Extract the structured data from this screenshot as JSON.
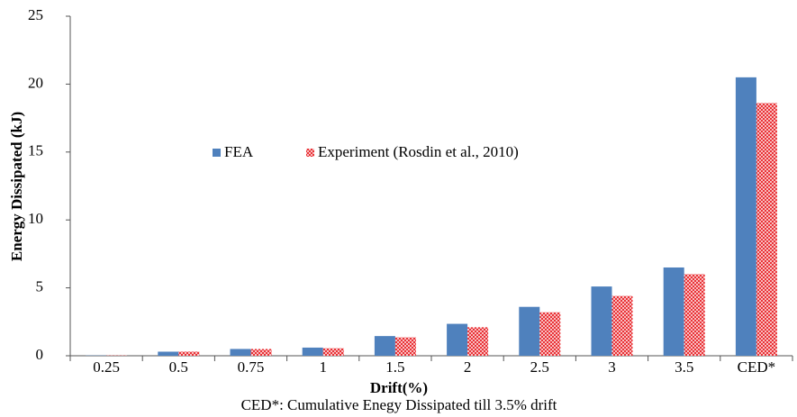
{
  "chart_data": {
    "type": "bar",
    "xlabel": "Drift(%)",
    "ylabel": "Energy Dissipated (kJ)",
    "note": "CED*: Cumulative Enegy Dissipated till 3.5% drift",
    "categories": [
      "0.25",
      "0.5",
      "0.75",
      "1",
      "1.5",
      "2",
      "2.5",
      "3",
      "3.5",
      "CED*"
    ],
    "series": [
      {
        "name": "FEA",
        "color": "#4f81bd",
        "values": [
          0.02,
          0.3,
          0.5,
          0.6,
          1.45,
          2.35,
          3.6,
          5.1,
          6.5,
          20.5
        ]
      },
      {
        "name": "Experiment (Rosdin et al., 2010)",
        "color": "#e8262b",
        "pattern": "crosshatch",
        "values": [
          0.02,
          0.3,
          0.5,
          0.55,
          1.35,
          2.1,
          3.2,
          4.4,
          6.0,
          18.6
        ]
      }
    ],
    "ylim": [
      0,
      25
    ],
    "yticks": [
      0,
      5,
      10,
      15,
      20,
      25
    ],
    "grid": false
  }
}
